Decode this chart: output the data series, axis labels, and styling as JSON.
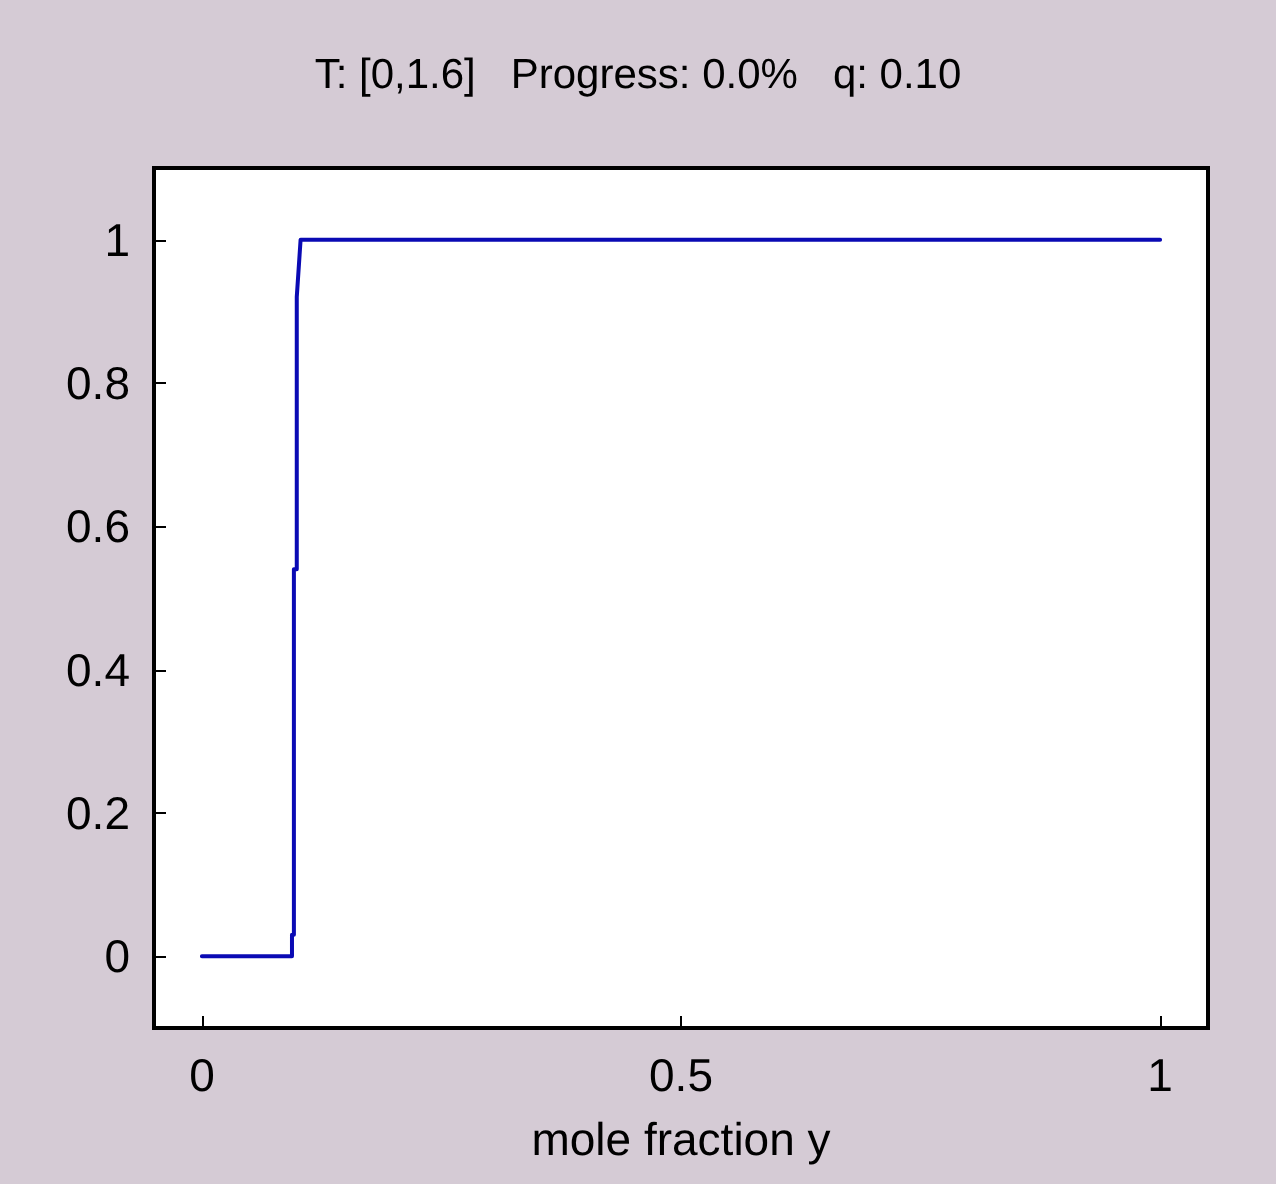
{
  "chart_data": {
    "type": "line",
    "title": "T: [0,1.6]   Progress: 0.0%   q: 0.10",
    "xlabel": "mole fraction y",
    "series": [
      {
        "color": "#0a0ab4",
        "x": [
          0,
          0.094,
          0.094,
          0.096,
          0.096,
          0.099,
          0.099,
          0.103,
          1
        ],
        "values": [
          0,
          0,
          0.03,
          0.03,
          0.54,
          0.54,
          0.92,
          1,
          1
        ]
      }
    ],
    "xlim": [
      -0.05,
      1.05
    ],
    "xticks": [
      0,
      0.5,
      1
    ],
    "ylim": [
      -0.1,
      1.1
    ],
    "yticks": [
      0,
      0.2,
      0.4,
      0.6,
      0.8,
      1
    ],
    "grid": false,
    "marker": "none",
    "line_style": "solid"
  }
}
